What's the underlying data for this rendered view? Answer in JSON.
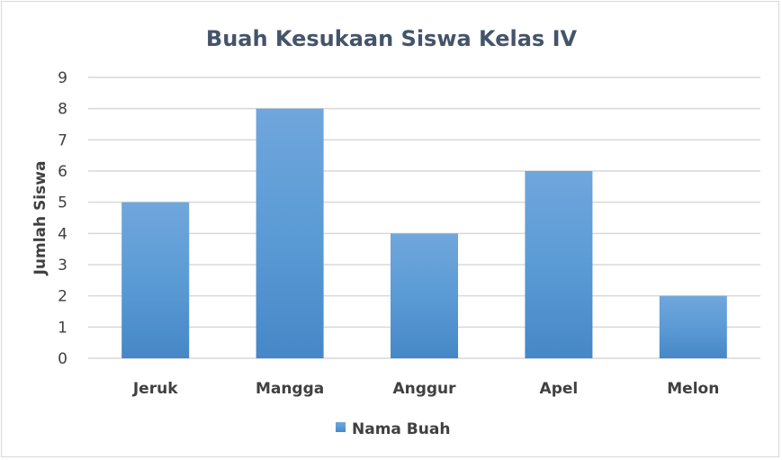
{
  "chart_data": {
    "type": "bar",
    "title": "Buah Kesukaan Siswa Kelas IV",
    "xlabel": "",
    "ylabel": "Jumlah Siswa",
    "categories": [
      "Jeruk",
      "Mangga",
      "Anggur",
      "Apel",
      "Melon"
    ],
    "series": [
      {
        "name": "Nama Buah",
        "values": [
          5,
          8,
          4,
          6,
          2
        ]
      }
    ],
    "ylim": [
      0,
      9
    ],
    "yticks": [
      0,
      1,
      2,
      3,
      4,
      5,
      6,
      7,
      8,
      9
    ],
    "grid": true,
    "legend": "bottom",
    "colors": {
      "bar_top": "#70a6dc",
      "bar_mid": "#5b9bd5",
      "bar_bottom": "#4687c7",
      "grid": "#d9d9d9",
      "title": "#44546a"
    }
  }
}
